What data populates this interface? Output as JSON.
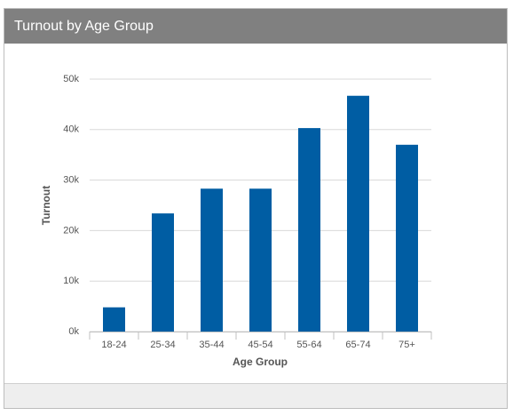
{
  "header": {
    "title": "Turnout by Age Group"
  },
  "chart_data": {
    "type": "bar",
    "x_label": "Age Group",
    "y_label": "Turnout",
    "categories": [
      "18-24",
      "25-34",
      "35-44",
      "45-54",
      "55-64",
      "65-74",
      "75+"
    ],
    "values": [
      4800,
      23400,
      28300,
      28300,
      40300,
      46700,
      37000
    ],
    "color": "#005da3",
    "ylim": [
      0,
      50000
    ],
    "yticks": [
      {
        "value": 0,
        "label": "0k"
      },
      {
        "value": 10000,
        "label": "10k"
      },
      {
        "value": 20000,
        "label": "20k"
      },
      {
        "value": 30000,
        "label": "30k"
      },
      {
        "value": 40000,
        "label": "40k"
      },
      {
        "value": 50000,
        "label": "50k"
      }
    ],
    "grid": true
  }
}
